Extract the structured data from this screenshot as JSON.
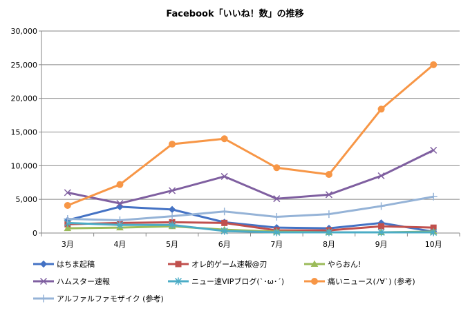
{
  "chart_data": {
    "type": "line",
    "title": "Facebook「いいね！数」の推移",
    "categories": [
      "3月",
      "4月",
      "5月",
      "6月",
      "7月",
      "8月",
      "9月",
      "10月"
    ],
    "ylim": [
      0,
      30000
    ],
    "yticks": [
      "0",
      "5,000",
      "10,000",
      "15,000",
      "20,000",
      "25,000",
      "30,000"
    ],
    "grid": true,
    "legend_position": "bottom",
    "series": [
      {
        "name": "はちま起稿",
        "color": "#4472C4",
        "marker": "diamond",
        "values": [
          1900,
          3900,
          3500,
          1600,
          800,
          700,
          1500,
          200
        ]
      },
      {
        "name": "オレ的ゲーム速報@刃",
        "color": "#C0504D",
        "marker": "square",
        "values": [
          1300,
          1500,
          1600,
          1500,
          400,
          400,
          1000,
          800
        ]
      },
      {
        "name": "やらおん!",
        "color": "#9BBB59",
        "marker": "triangle",
        "values": [
          700,
          800,
          1000,
          500,
          200,
          100,
          100,
          200
        ]
      },
      {
        "name": "ハムスター速報",
        "color": "#7F5FA0",
        "marker": "x",
        "values": [
          6000,
          4400,
          6300,
          8400,
          5100,
          5700,
          8500,
          12300
        ]
      },
      {
        "name": "ニュー速VIPブログ(`･ω･´)",
        "color": "#4BACC6",
        "marker": "star",
        "values": [
          1500,
          1200,
          1200,
          300,
          100,
          100,
          100,
          100
        ]
      },
      {
        "name": "痛いニュース(ﾉ∀`) (参考)",
        "color": "#F79646",
        "marker": "circle",
        "values": [
          4100,
          7200,
          13200,
          14000,
          9700,
          8700,
          18400,
          25000
        ]
      },
      {
        "name": "アルファルファモザイク (参考)",
        "color": "#95B3D7",
        "marker": "plus",
        "values": [
          2100,
          1900,
          2500,
          3200,
          2400,
          2800,
          4000,
          5400
        ]
      }
    ]
  }
}
